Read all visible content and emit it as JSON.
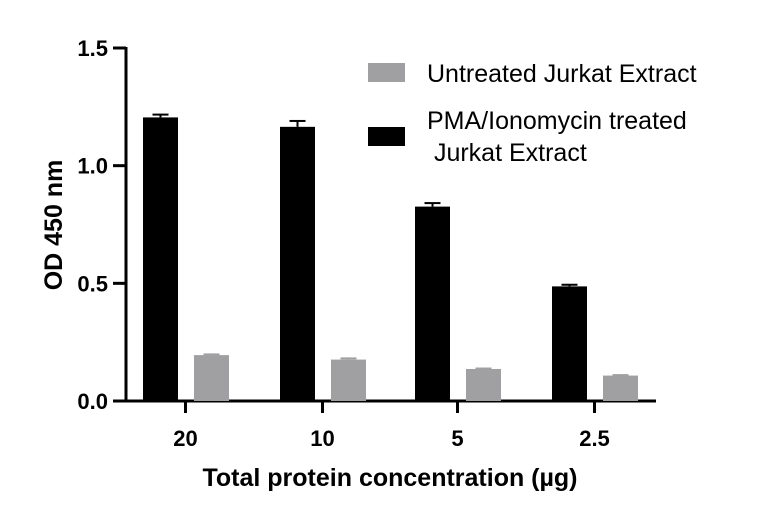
{
  "chart_data": {
    "type": "bar",
    "title": "",
    "xlabel": "Total protein concentration (µg)",
    "ylabel": "OD 450 nm",
    "ylim": [
      0,
      1.5
    ],
    "yticks": [
      "0.0",
      "0.5",
      "1.0",
      "1.5"
    ],
    "categories": [
      "20",
      "10",
      "5",
      "2.5"
    ],
    "grid": false,
    "legend_position": "top-right",
    "series": [
      {
        "name": "PMA/Ionomycin treated Jurkat Extract",
        "legend_lines": [
          "PMA/Ionomycin treated",
          " Jurkat Extract"
        ],
        "color": "#000000",
        "values": [
          1.205,
          1.165,
          0.826,
          0.487
        ],
        "errors": [
          0.012,
          0.025,
          0.015,
          0.007
        ]
      },
      {
        "name": "Untreated Jurkat Extract",
        "legend_lines": [
          "Untreated Jurkat Extract"
        ],
        "color": "#a0a0a3",
        "values": [
          0.195,
          0.176,
          0.136,
          0.108
        ],
        "errors": [
          0.003,
          0.005,
          0.002,
          0.002
        ]
      }
    ]
  }
}
